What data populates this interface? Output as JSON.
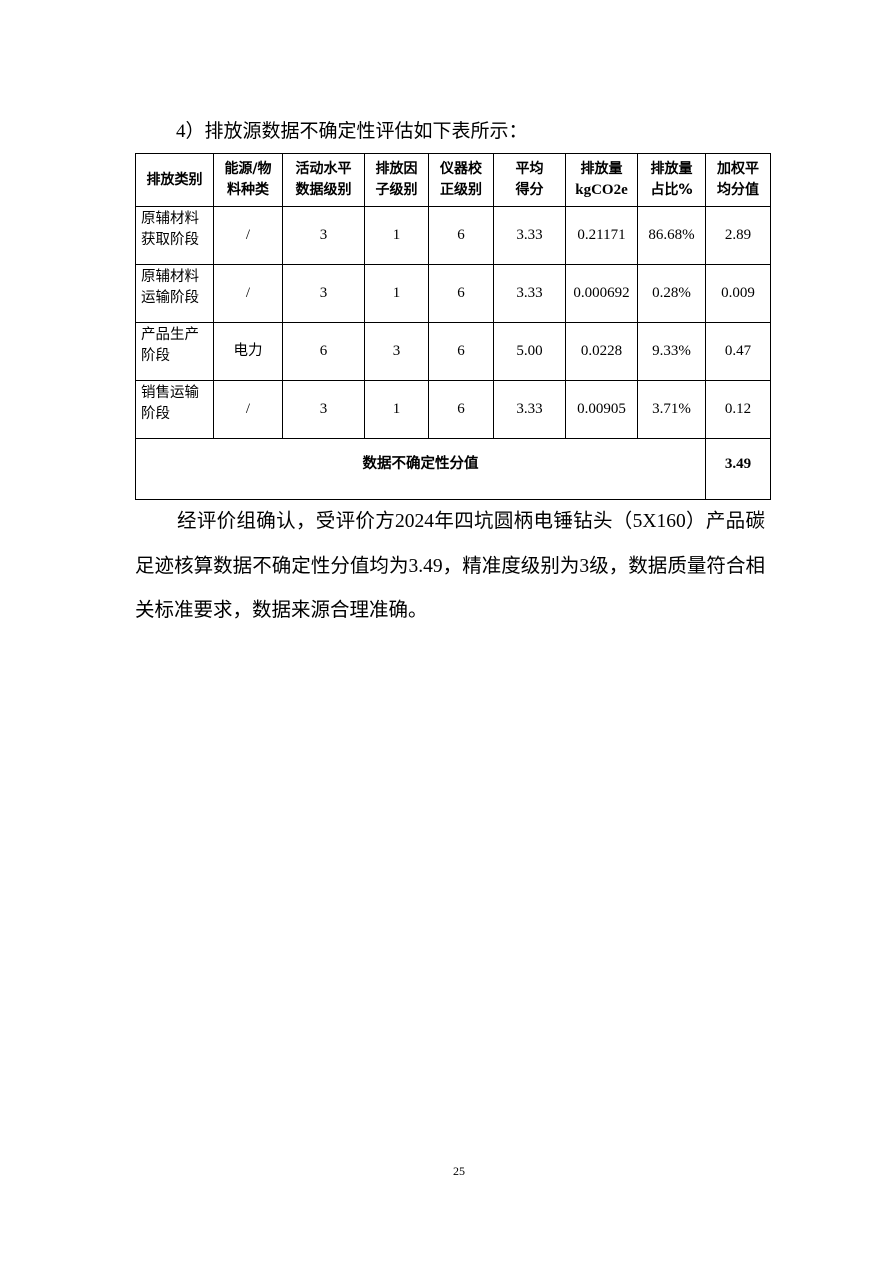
{
  "intro": "4）排放源数据不确定性评估如下表所示：",
  "table": {
    "headers": [
      "排放类别",
      "能源/物料种类",
      "活动水平数据级别",
      "排放因子级别",
      "仪器校正级别",
      "平均得分",
      "排放量kgCO2e",
      "排放量占比%",
      "加权平均分值"
    ],
    "header_lines": [
      [
        "排放类别"
      ],
      [
        "能源/物",
        "料种类"
      ],
      [
        "活动水平",
        "数据级别"
      ],
      [
        "排放因",
        "子级别"
      ],
      [
        "仪器校",
        "正级别"
      ],
      [
        "平均",
        "得分"
      ],
      [
        "排放量",
        "kgCO2e"
      ],
      [
        "排放量",
        "占比%"
      ],
      [
        "加权平",
        "均分值"
      ]
    ],
    "rows": [
      {
        "category": [
          "原辅材料",
          "获取阶段"
        ],
        "kind": "/",
        "activity": "3",
        "factor": "1",
        "instrument": "6",
        "avg": "3.33",
        "emission": "0.21171",
        "share": "86.68%",
        "weighted": "2.89"
      },
      {
        "category": [
          "原辅材料",
          "运输阶段"
        ],
        "kind": "/",
        "activity": "3",
        "factor": "1",
        "instrument": "6",
        "avg": "3.33",
        "emission": "0.000692",
        "share": "0.28%",
        "weighted": "0.009"
      },
      {
        "category": [
          "产品生产",
          "阶段"
        ],
        "kind": "电力",
        "activity": "6",
        "factor": "3",
        "instrument": "6",
        "avg": "5.00",
        "emission": "0.0228",
        "share": "9.33%",
        "weighted": "0.47"
      },
      {
        "category": [
          "销售运输",
          "阶段"
        ],
        "kind": "/",
        "activity": "3",
        "factor": "1",
        "instrument": "6",
        "avg": "3.33",
        "emission": "0.00905",
        "share": "3.71%",
        "weighted": "0.12"
      }
    ],
    "total_label": "数据不确定性分值",
    "total_value": "3.49"
  },
  "paragraph": "经评价组确认，受评价方2024年四坑圆柄电锤钻头（5X160）产品碳足迹核算数据不确定性分值均为3.49，精准度级别为3级，数据质量符合相关标准要求，数据来源合理准确。",
  "page_number": "25"
}
